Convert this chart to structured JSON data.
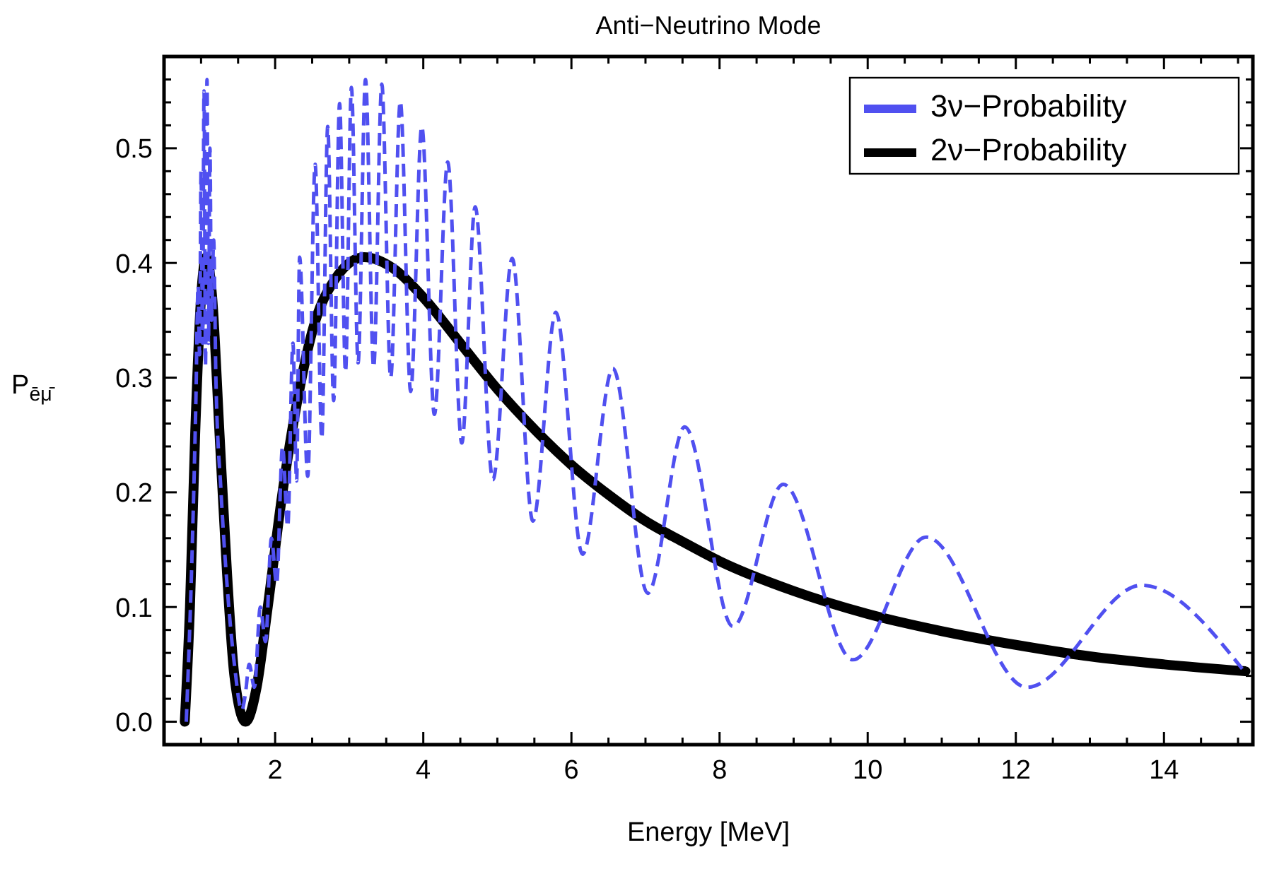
{
  "chart_data": {
    "type": "line",
    "title": "Anti−Neutrino Mode",
    "xlabel": "Energy [MeV]",
    "ylabel": "P$_{ēμ̄}$",
    "xlim": [
      0.5,
      15.2
    ],
    "ylim": [
      -0.02,
      0.58
    ],
    "xticks": [
      {
        "value": 0.5,
        "label": null
      },
      {
        "value": 1,
        "label": null
      },
      {
        "value": 1.5,
        "label": null
      },
      2,
      {
        "value": 2.5,
        "label": null
      },
      {
        "value": 3,
        "label": null
      },
      {
        "value": 3.5,
        "label": null
      },
      4,
      {
        "value": 4.5,
        "label": null
      },
      {
        "value": 5,
        "label": null
      },
      {
        "value": 5.5,
        "label": null
      },
      6,
      {
        "value": 6.5,
        "label": null
      },
      {
        "value": 7,
        "label": null
      },
      {
        "value": 7.5,
        "label": null
      },
      8,
      {
        "value": 8.5,
        "label": null
      },
      {
        "value": 9,
        "label": null
      },
      {
        "value": 9.5,
        "label": null
      },
      10,
      {
        "value": 10.5,
        "label": null
      },
      {
        "value": 11,
        "label": null
      },
      {
        "value": 11.5,
        "label": null
      },
      12,
      {
        "value": 12.5,
        "label": null
      },
      {
        "value": 13,
        "label": null
      },
      {
        "value": 13.5,
        "label": null
      },
      14,
      {
        "value": 14.5,
        "label": null
      },
      {
        "value": 15,
        "label": null
      }
    ],
    "yticks": [
      {
        "value": 0,
        "label": "0.0"
      },
      {
        "value": 0.02,
        "label": null
      },
      {
        "value": 0.04,
        "label": null
      },
      {
        "value": 0.06,
        "label": null
      },
      {
        "value": 0.08,
        "label": null
      },
      {
        "value": 0.1,
        "label": "0.1"
      },
      {
        "value": 0.12,
        "label": null
      },
      {
        "value": 0.14,
        "label": null
      },
      {
        "value": 0.16,
        "label": null
      },
      {
        "value": 0.18,
        "label": null
      },
      {
        "value": 0.2,
        "label": "0.2"
      },
      {
        "value": 0.22,
        "label": null
      },
      {
        "value": 0.24,
        "label": null
      },
      {
        "value": 0.26,
        "label": null
      },
      {
        "value": 0.28,
        "label": null
      },
      {
        "value": 0.3,
        "label": "0.3"
      },
      {
        "value": 0.32,
        "label": null
      },
      {
        "value": 0.34,
        "label": null
      },
      {
        "value": 0.36,
        "label": null
      },
      {
        "value": 0.38,
        "label": null
      },
      {
        "value": 0.4,
        "label": "0.4"
      },
      {
        "value": 0.42,
        "label": null
      },
      {
        "value": 0.44,
        "label": null
      },
      {
        "value": 0.46,
        "label": null
      },
      {
        "value": 0.48,
        "label": null
      },
      {
        "value": 0.5,
        "label": "0.5"
      },
      {
        "value": 0.52,
        "label": null
      },
      {
        "value": 0.54,
        "label": null
      },
      {
        "value": 0.56,
        "label": null
      }
    ],
    "grid": false,
    "legend": "top right",
    "marker": "none",
    "series": [
      {
        "name": "3ν−Probability",
        "color": "#5050f0",
        "line_style": "dashed",
        "x": [
          0.8,
          0.88,
          0.93,
          0.96,
          0.98,
          1.0,
          1.02,
          1.04,
          1.06,
          1.08,
          1.1,
          1.12,
          1.14,
          1.17,
          1.2,
          1.27,
          1.35,
          1.45,
          1.55,
          1.6,
          1.65,
          1.72,
          1.8,
          1.87,
          1.95,
          2.02,
          2.1,
          2.17,
          2.24,
          2.29,
          2.33,
          2.44,
          2.54,
          2.63,
          2.71,
          2.79,
          2.87,
          2.95,
          3.03,
          3.12,
          3.22,
          3.33,
          3.44,
          3.56,
          3.69,
          3.83,
          3.98,
          4.15,
          4.33,
          4.52,
          4.7,
          4.94,
          5.2,
          5.48,
          5.79,
          6.15,
          6.56,
          7.03,
          7.53,
          8.18,
          8.86,
          9.8,
          10.79,
          12.15,
          13.7,
          15.07
        ],
        "values": [
          0.0,
          0.15,
          0.28,
          0.38,
          0.32,
          0.48,
          0.33,
          0.55,
          0.31,
          0.56,
          0.33,
          0.5,
          0.35,
          0.42,
          0.3,
          0.2,
          0.12,
          0.05,
          0.01,
          0.025,
          0.05,
          0.03,
          0.1,
          0.07,
          0.16,
          0.12,
          0.24,
          0.17,
          0.33,
          0.21,
          0.405,
          0.214,
          0.486,
          0.247,
          0.519,
          0.28,
          0.539,
          0.305,
          0.553,
          0.313,
          0.56,
          0.309,
          0.556,
          0.3,
          0.541,
          0.288,
          0.519,
          0.268,
          0.488,
          0.243,
          0.449,
          0.211,
          0.404,
          0.175,
          0.357,
          0.146,
          0.308,
          0.112,
          0.257,
          0.083,
          0.207,
          0.054,
          0.161,
          0.03,
          0.119,
          0.045
        ]
      },
      {
        "name": "2ν−Probability",
        "color": "#000000",
        "line_style": "solid",
        "x": [
          0.78,
          0.85,
          0.92,
          1.0,
          1.07,
          1.15,
          1.25,
          1.35,
          1.45,
          1.6,
          1.75,
          1.9,
          2.1,
          2.3,
          2.5,
          2.8,
          3.2,
          3.6,
          4.0,
          4.5,
          5,
          5.5,
          6,
          6.5,
          7,
          7.5,
          8,
          9,
          10,
          11,
          12,
          13,
          14,
          15.1
        ],
        "values": [
          0.0,
          0.1,
          0.25,
          0.37,
          0.405,
          0.37,
          0.25,
          0.13,
          0.04,
          0.0,
          0.03,
          0.1,
          0.2,
          0.28,
          0.34,
          0.385,
          0.405,
          0.395,
          0.37,
          0.33,
          0.29,
          0.255,
          0.224,
          0.198,
          0.175,
          0.157,
          0.14,
          0.114,
          0.094,
          0.079,
          0.067,
          0.057,
          0.05,
          0.044
        ]
      }
    ]
  }
}
